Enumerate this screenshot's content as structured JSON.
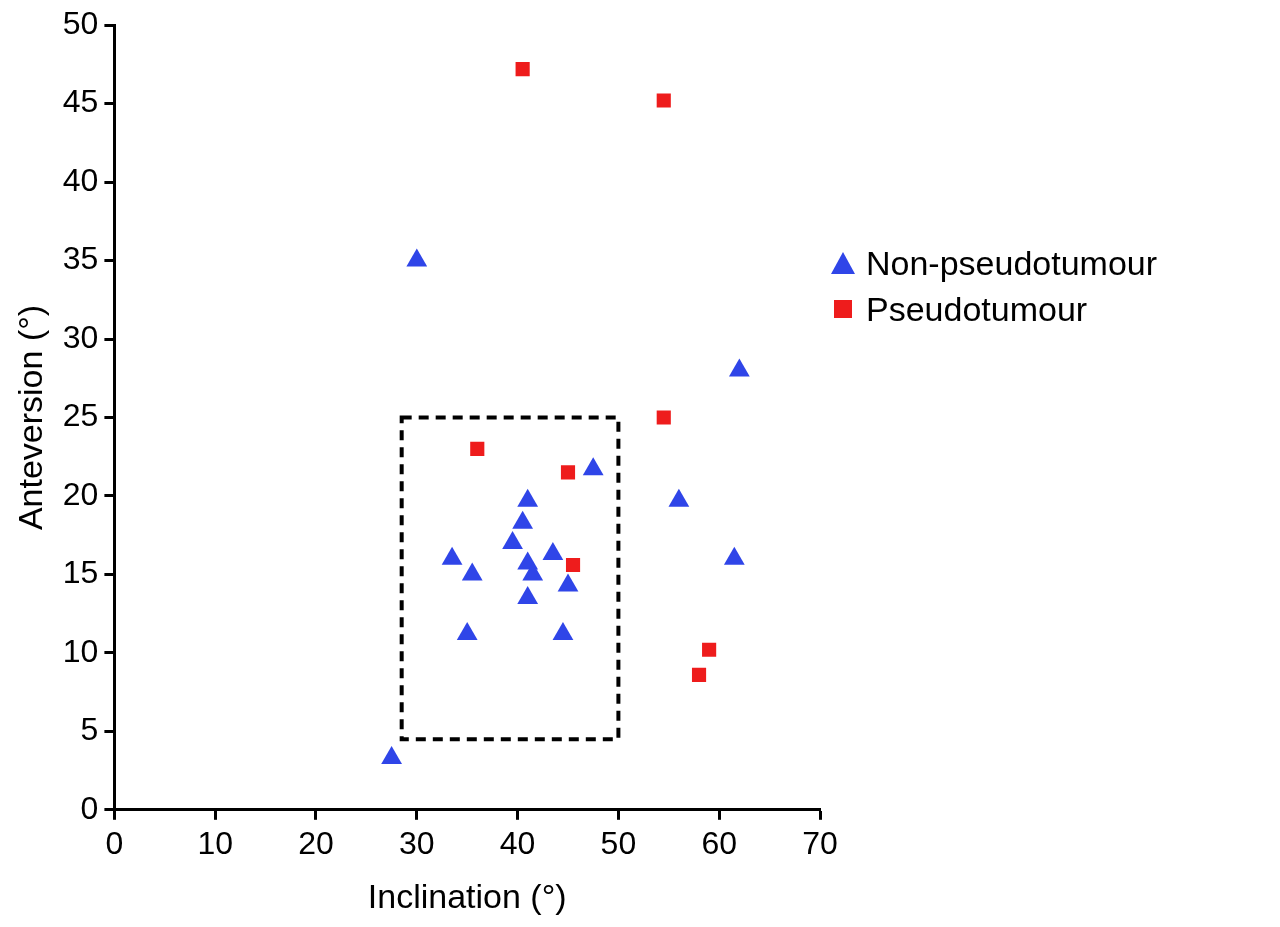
{
  "chart_data": {
    "type": "scatter",
    "x_label": "Inclination (°)",
    "y_label": "Anteversion (°)",
    "xlim": [
      0,
      70
    ],
    "xticks": [
      0,
      10,
      20,
      30,
      40,
      50,
      60,
      70
    ],
    "ylim": [
      0,
      50
    ],
    "yticks": [
      0,
      5,
      10,
      15,
      20,
      25,
      30,
      35,
      40,
      45,
      50
    ],
    "grid": false,
    "legend": "right",
    "series": [
      {
        "name": "Non-pseudotumour",
        "color": "#2f45e8",
        "marker": "triangle",
        "x": [
          30,
          27.5,
          33.5,
          35.5,
          35,
          39.5,
          40.5,
          41,
          41,
          41.5,
          41,
          43.5,
          45,
          44.5,
          47.5,
          56,
          61.5,
          62
        ],
        "values": [
          35,
          3.3,
          16,
          15,
          11.2,
          17,
          18.3,
          19.7,
          15.7,
          15,
          13.5,
          16.3,
          14.3,
          11.2,
          21.7,
          19.7,
          16,
          28
        ]
      },
      {
        "name": "Pseudotumour",
        "color": "#ee1c1c",
        "marker": "square",
        "x": [
          40.5,
          54.5,
          36,
          45,
          45.5,
          54.5,
          59,
          58
        ],
        "values": [
          47.2,
          45.2,
          23,
          21.5,
          15.6,
          25,
          10.2,
          8.6
        ]
      }
    ],
    "box": {
      "xlim": [
        28.5,
        50
      ],
      "ylim": [
        4.5,
        25
      ],
      "line_style": "dashed"
    }
  }
}
